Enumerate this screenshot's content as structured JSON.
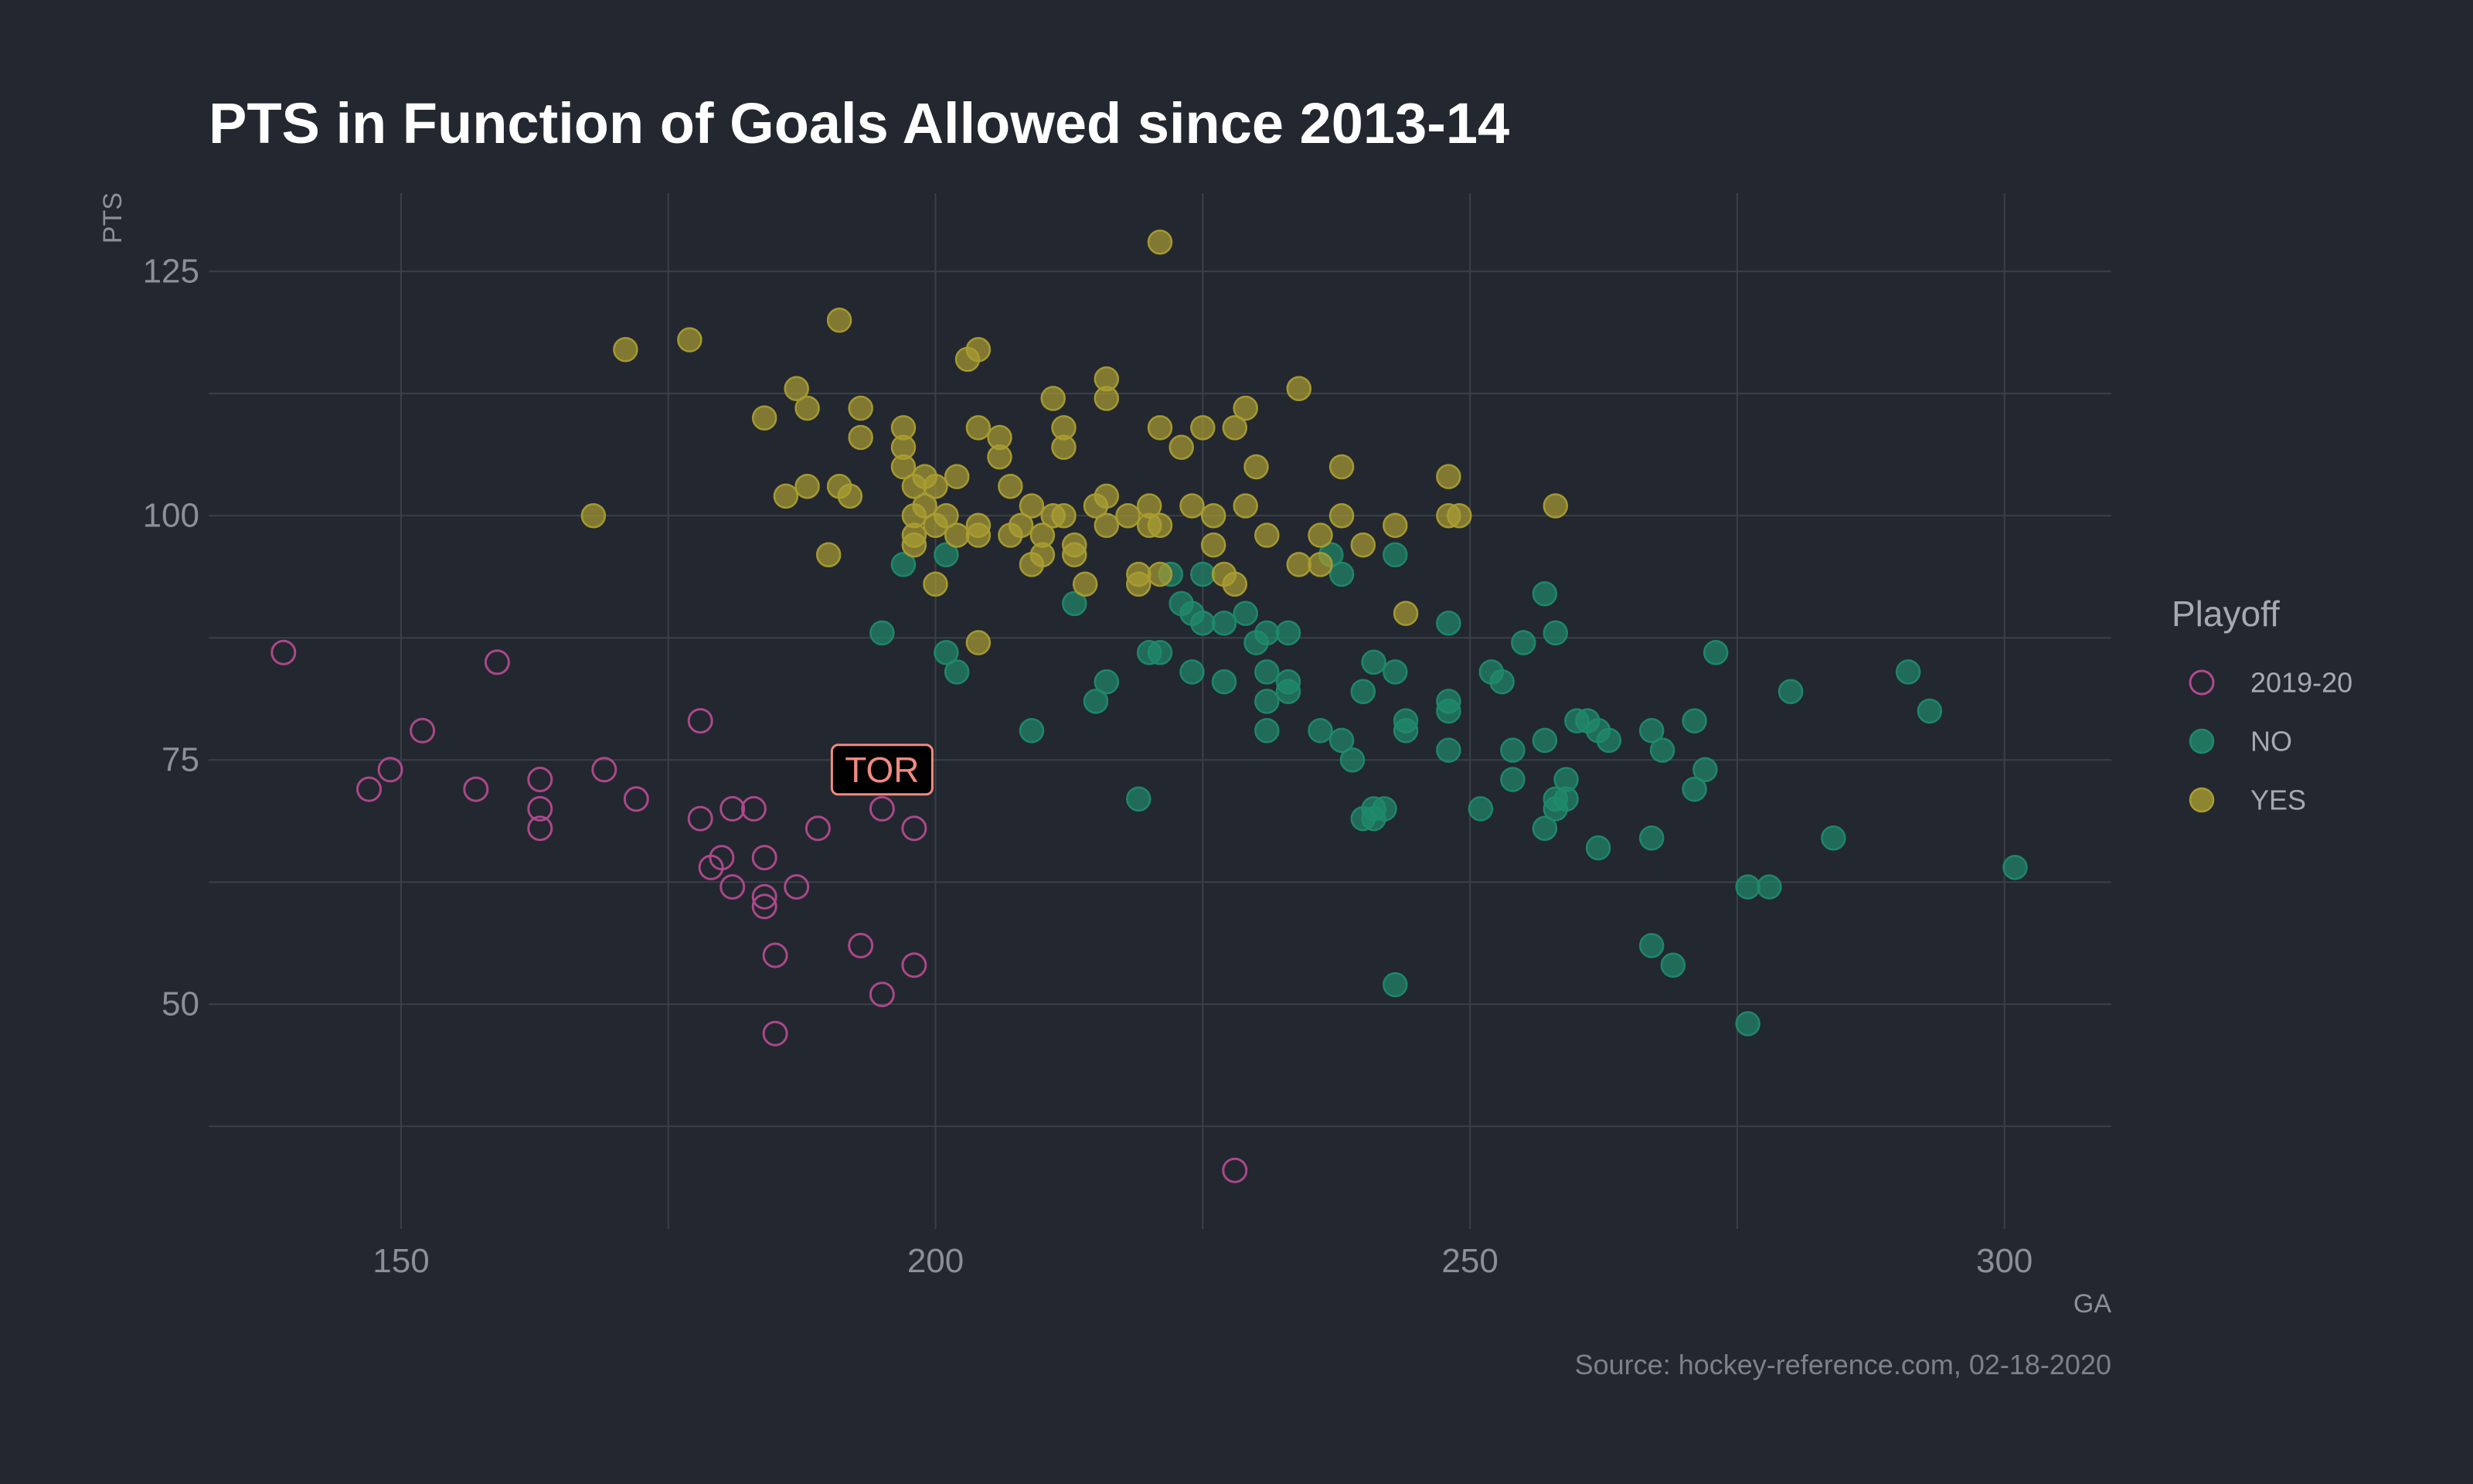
{
  "chart_data": {
    "type": "scatter",
    "title": "PTS in Function of Goals Allowed since 2013-14",
    "xlabel": "GA",
    "ylabel": "PTS",
    "caption": "Source: hockey-reference.com, 02-18-2020",
    "xlim": [
      132,
      310
    ],
    "ylim": [
      27,
      133
    ],
    "x_ticks": [
      150,
      200,
      250,
      300
    ],
    "y_ticks": [
      50,
      75,
      100,
      125
    ],
    "grid": true,
    "legend": {
      "title": "Playoff",
      "position": "right"
    },
    "annotation": {
      "text": "TOR",
      "x": 195,
      "y": 74,
      "fill": "#000000",
      "border": "#f08a80",
      "color": "#f08a80"
    },
    "series": [
      {
        "name": "2019-20",
        "style": "hollow",
        "color": "#b24a8f",
        "points": [
          [
            139,
            86
          ],
          [
            147,
            72
          ],
          [
            149,
            74
          ],
          [
            152,
            78
          ],
          [
            157,
            72
          ],
          [
            159,
            85
          ],
          [
            163,
            73
          ],
          [
            163,
            70
          ],
          [
            163,
            68
          ],
          [
            169,
            74
          ],
          [
            172,
            71
          ],
          [
            178,
            79
          ],
          [
            178,
            69
          ],
          [
            179,
            64
          ],
          [
            180,
            65
          ],
          [
            181,
            70
          ],
          [
            181,
            62
          ],
          [
            183,
            70
          ],
          [
            184,
            65
          ],
          [
            184,
            61
          ],
          [
            184,
            60
          ],
          [
            185,
            55
          ],
          [
            185,
            47
          ],
          [
            187,
            62
          ],
          [
            189,
            68
          ],
          [
            193,
            56
          ],
          [
            195,
            70
          ],
          [
            195,
            51
          ],
          [
            198,
            68
          ],
          [
            198,
            54
          ],
          [
            228,
            33
          ]
        ]
      },
      {
        "name": "NO",
        "style": "filled",
        "color": "#1f8a6b",
        "points": [
          [
            195,
            88
          ],
          [
            197,
            95
          ],
          [
            201,
            96
          ],
          [
            201,
            86
          ],
          [
            202,
            84
          ],
          [
            209,
            78
          ],
          [
            213,
            91
          ],
          [
            215,
            81
          ],
          [
            216,
            83
          ],
          [
            219,
            71
          ],
          [
            220,
            86
          ],
          [
            221,
            86
          ],
          [
            222,
            94
          ],
          [
            223,
            91
          ],
          [
            224,
            90
          ],
          [
            224,
            84
          ],
          [
            225,
            89
          ],
          [
            225,
            94
          ],
          [
            227,
            89
          ],
          [
            227,
            83
          ],
          [
            229,
            90
          ],
          [
            230,
            87
          ],
          [
            231,
            88
          ],
          [
            231,
            84
          ],
          [
            231,
            81
          ],
          [
            231,
            78
          ],
          [
            233,
            88
          ],
          [
            233,
            83
          ],
          [
            233,
            82
          ],
          [
            236,
            78
          ],
          [
            237,
            96
          ],
          [
            238,
            94
          ],
          [
            238,
            77
          ],
          [
            239,
            75
          ],
          [
            240,
            82
          ],
          [
            240,
            69
          ],
          [
            241,
            85
          ],
          [
            241,
            70
          ],
          [
            241,
            69
          ],
          [
            242,
            70
          ],
          [
            243,
            84
          ],
          [
            243,
            96
          ],
          [
            244,
            79
          ],
          [
            244,
            78
          ],
          [
            248,
            89
          ],
          [
            248,
            81
          ],
          [
            248,
            80
          ],
          [
            248,
            76
          ],
          [
            251,
            70
          ],
          [
            252,
            84
          ],
          [
            253,
            83
          ],
          [
            254,
            76
          ],
          [
            254,
            73
          ],
          [
            255,
            87
          ],
          [
            257,
            92
          ],
          [
            257,
            77
          ],
          [
            257,
            68
          ],
          [
            258,
            88
          ],
          [
            258,
            71
          ],
          [
            258,
            70
          ],
          [
            259,
            73
          ],
          [
            259,
            71
          ],
          [
            260,
            79
          ],
          [
            261,
            79
          ],
          [
            262,
            78
          ],
          [
            262,
            66
          ],
          [
            263,
            77
          ],
          [
            267,
            78
          ],
          [
            267,
            67
          ],
          [
            267,
            56
          ],
          [
            268,
            76
          ],
          [
            269,
            54
          ],
          [
            271,
            79
          ],
          [
            271,
            72
          ],
          [
            272,
            74
          ],
          [
            273,
            86
          ],
          [
            276,
            62
          ],
          [
            276,
            48
          ],
          [
            278,
            62
          ],
          [
            280,
            82
          ],
          [
            284,
            67
          ],
          [
            291,
            84
          ],
          [
            293,
            80
          ],
          [
            301,
            64
          ],
          [
            243,
            52
          ]
        ]
      },
      {
        "name": "YES",
        "style": "filled",
        "color": "#a99d32",
        "points": [
          [
            168,
            100
          ],
          [
            171,
            117
          ],
          [
            177,
            118
          ],
          [
            184,
            110
          ],
          [
            186,
            102
          ],
          [
            187,
            113
          ],
          [
            188,
            111
          ],
          [
            188,
            103
          ],
          [
            190,
            96
          ],
          [
            191,
            120
          ],
          [
            191,
            103
          ],
          [
            192,
            102
          ],
          [
            193,
            111
          ],
          [
            193,
            108
          ],
          [
            197,
            109
          ],
          [
            197,
            107
          ],
          [
            197,
            105
          ],
          [
            198,
            103
          ],
          [
            198,
            100
          ],
          [
            198,
            98
          ],
          [
            198,
            97
          ],
          [
            199,
            104
          ],
          [
            199,
            101
          ],
          [
            200,
            103
          ],
          [
            200,
            99
          ],
          [
            200,
            93
          ],
          [
            201,
            100
          ],
          [
            202,
            104
          ],
          [
            202,
            98
          ],
          [
            203,
            116
          ],
          [
            204,
            117
          ],
          [
            204,
            109
          ],
          [
            204,
            99
          ],
          [
            204,
            98
          ],
          [
            204,
            87
          ],
          [
            206,
            108
          ],
          [
            206,
            106
          ],
          [
            207,
            103
          ],
          [
            207,
            98
          ],
          [
            208,
            99
          ],
          [
            209,
            101
          ],
          [
            209,
            95
          ],
          [
            210,
            98
          ],
          [
            210,
            96
          ],
          [
            211,
            112
          ],
          [
            211,
            100
          ],
          [
            212,
            109
          ],
          [
            212,
            107
          ],
          [
            212,
            100
          ],
          [
            213,
            97
          ],
          [
            213,
            96
          ],
          [
            214,
            93
          ],
          [
            215,
            101
          ],
          [
            216,
            114
          ],
          [
            216,
            112
          ],
          [
            216,
            102
          ],
          [
            216,
            99
          ],
          [
            218,
            100
          ],
          [
            219,
            94
          ],
          [
            219,
            93
          ],
          [
            220,
            101
          ],
          [
            220,
            99
          ],
          [
            221,
            94
          ],
          [
            221,
            109
          ],
          [
            221,
            99
          ],
          [
            221,
            128
          ],
          [
            223,
            107
          ],
          [
            224,
            101
          ],
          [
            225,
            109
          ],
          [
            226,
            100
          ],
          [
            226,
            97
          ],
          [
            227,
            94
          ],
          [
            228,
            109
          ],
          [
            228,
            93
          ],
          [
            229,
            111
          ],
          [
            229,
            101
          ],
          [
            230,
            105
          ],
          [
            231,
            98
          ],
          [
            234,
            113
          ],
          [
            234,
            95
          ],
          [
            236,
            98
          ],
          [
            236,
            95
          ],
          [
            238,
            105
          ],
          [
            238,
            100
          ],
          [
            240,
            97
          ],
          [
            243,
            99
          ],
          [
            244,
            90
          ],
          [
            248,
            104
          ],
          [
            248,
            100
          ],
          [
            249,
            100
          ],
          [
            258,
            101
          ]
        ]
      }
    ]
  }
}
